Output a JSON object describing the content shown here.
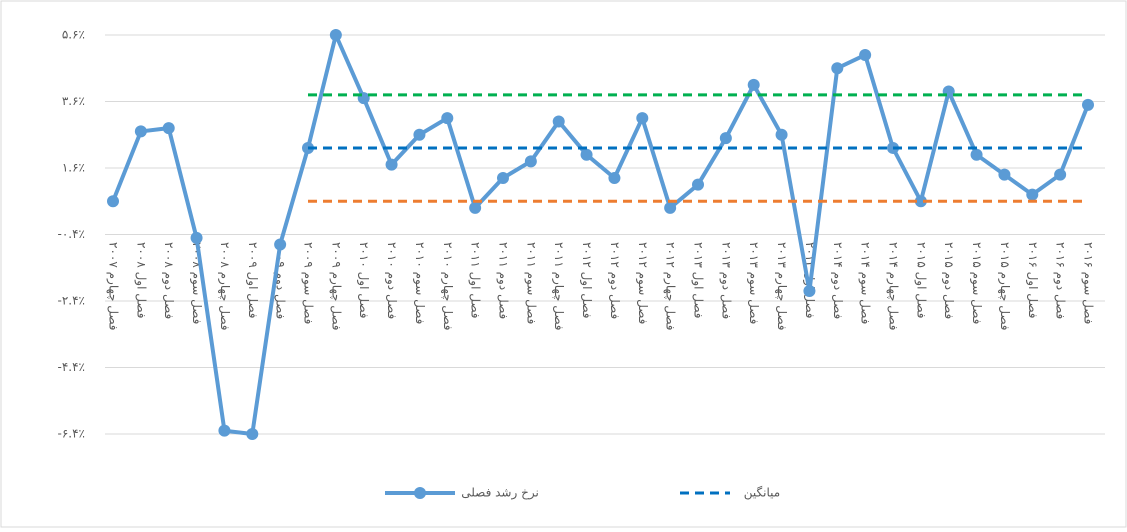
{
  "chart_data": {
    "type": "line",
    "categories": [
      "فصل چهارم ۲۰۰۷",
      "فصل اول ۲۰۰۸",
      "فصل دوم ۲۰۰۸",
      "فصل سوم ۲۰۰۸",
      "فصل چهارم ۲۰۰۸",
      "فصل اول ۲۰۰۹",
      "فصل دوم ۲۰۰۹",
      "فصل سوم ۲۰۰۹",
      "فصل چهارم ۲۰۰۹",
      "فصل اول ۲۰۱۰",
      "فصل دوم ۲۰۱۰",
      "فصل سوم ۲۰۱۰",
      "فصل چهارم ۲۰۱۰",
      "فصل اول ۲۰۱۱",
      "فصل دوم ۲۰۱۱",
      "فصل سوم ۲۰۱۱",
      "فصل چهارم ۲۰۱۱",
      "فصل اول ۲۰۱۲",
      "فصل دوم ۲۰۱۲",
      "فصل سوم ۲۰۱۲",
      "فصل چهارم ۲۰۱۲",
      "فصل اول ۲۰۱۳",
      "فصل دوم ۲۰۱۳",
      "فصل سوم ۲۰۱۳",
      "فصل چهارم ۲۰۱۳",
      "فصل اول ۲۰۱۴",
      "فصل دوم ۲۰۱۴",
      "فصل سوم ۲۰۱۴",
      "فصل چهارم ۲۰۱۴",
      "فصل اول ۲۰۱۵",
      "فصل دوم ۲۰۱۵",
      "فصل سوم ۲۰۱۵",
      "فصل چهارم ۲۰۱۵",
      "فصل اول ۲۰۱۶",
      "فصل دوم ۲۰۱۶",
      "فصل سوم ۲۰۱۶"
    ],
    "series": [
      {
        "name": "نرخ رشد فصلی",
        "color": "#5b9bd5",
        "style": "solid",
        "markers": true,
        "values": [
          0.6,
          2.7,
          2.8,
          -0.5,
          -6.3,
          -6.4,
          -0.7,
          2.2,
          5.6,
          3.7,
          1.7,
          2.6,
          3.1,
          0.4,
          1.3,
          1.8,
          3.0,
          2.0,
          1.3,
          3.1,
          0.4,
          1.1,
          2.5,
          4.1,
          2.6,
          -2.1,
          4.6,
          5.0,
          2.2,
          0.6,
          3.9,
          2.0,
          1.4,
          0.8,
          1.4,
          3.5
        ]
      },
      {
        "name": "میانگین",
        "color": "#0070c0",
        "style": "dashed",
        "values": [
          null,
          null,
          null,
          null,
          null,
          null,
          null,
          2.2,
          2.2,
          2.2,
          2.2,
          2.2,
          2.2,
          2.2,
          2.2,
          2.2,
          2.2,
          2.2,
          2.2,
          2.2,
          2.2,
          2.2,
          2.2,
          2.2,
          2.2,
          2.2,
          2.2,
          2.2,
          2.2,
          2.2,
          2.2,
          2.2,
          2.2,
          2.2,
          2.2,
          2.2
        ]
      },
      {
        "color": "#00b050",
        "style": "dashed",
        "values": [
          null,
          null,
          null,
          null,
          null,
          null,
          null,
          3.8,
          3.8,
          3.8,
          3.8,
          3.8,
          3.8,
          3.8,
          3.8,
          3.8,
          3.8,
          3.8,
          3.8,
          3.8,
          3.8,
          3.8,
          3.8,
          3.8,
          3.8,
          3.8,
          3.8,
          3.8,
          3.8,
          3.8,
          3.8,
          3.8,
          3.8,
          3.8,
          3.8,
          3.8
        ]
      },
      {
        "color": "#ed7d31",
        "style": "dashed",
        "values": [
          null,
          null,
          null,
          null,
          null,
          null,
          null,
          0.6,
          0.6,
          0.6,
          0.6,
          0.6,
          0.6,
          0.6,
          0.6,
          0.6,
          0.6,
          0.6,
          0.6,
          0.6,
          0.6,
          0.6,
          0.6,
          0.6,
          0.6,
          0.6,
          0.6,
          0.6,
          0.6,
          0.6,
          0.6,
          0.6,
          0.6,
          0.6,
          0.6,
          0.6
        ]
      }
    ],
    "ylim": [
      -6.4,
      5.6
    ],
    "yticks": [
      {
        "value": 5.6,
        "label": "۵.۶٪"
      },
      {
        "value": 3.6,
        "label": "۳.۶٪"
      },
      {
        "value": 1.6,
        "label": "۱.۶٪"
      },
      {
        "value": -0.4,
        "label": "-۰.۴٪"
      },
      {
        "value": -2.4,
        "label": "-۲.۴٪"
      },
      {
        "value": -4.4,
        "label": "-۴.۴٪"
      },
      {
        "value": -6.4,
        "label": "-۶.۴٪"
      }
    ],
    "grid": true,
    "legend": "bottom"
  }
}
